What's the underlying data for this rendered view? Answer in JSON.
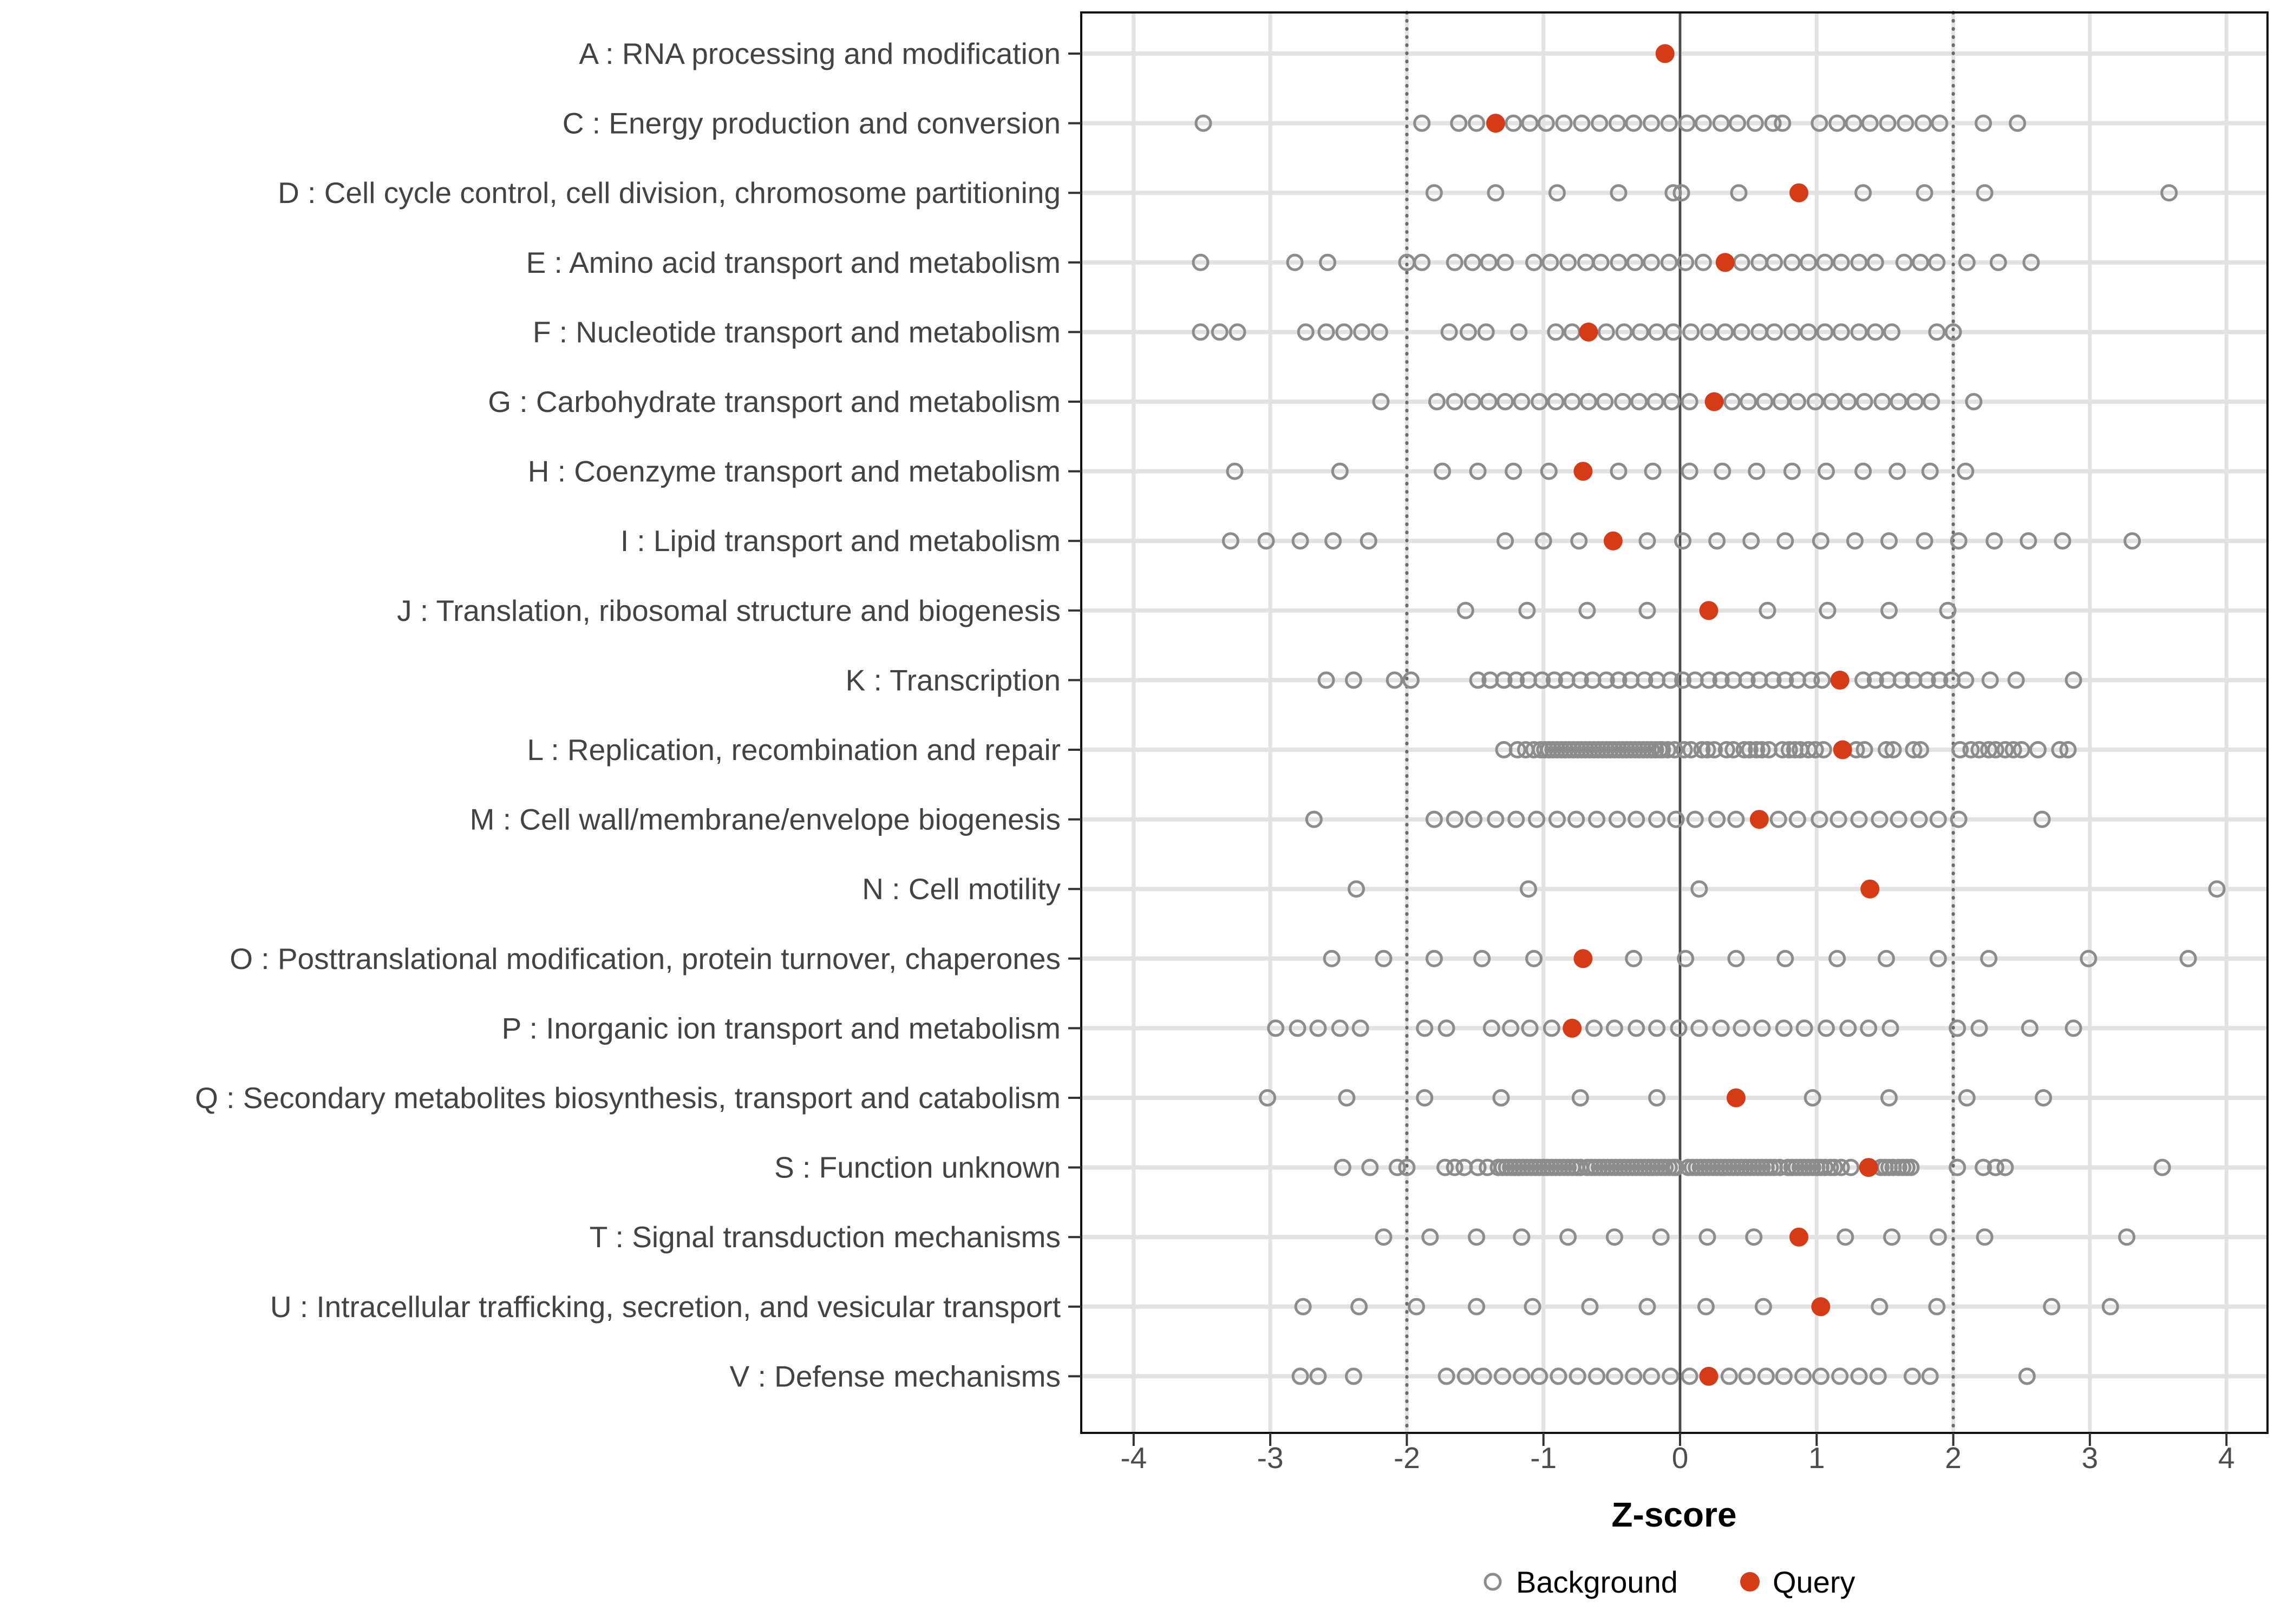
{
  "chart_data": {
    "type": "scatter",
    "title": "",
    "xlabel": "Z-score",
    "xlim": [
      -4.38,
      4.3
    ],
    "x_ticks": [
      -4,
      -3,
      -2,
      -1,
      0,
      1,
      2,
      3,
      4
    ],
    "grid": "on",
    "reference_lines": {
      "solid_at": 0,
      "dashed_at": [
        -2,
        2
      ]
    },
    "legend_position": "bottom",
    "series_names": [
      "Background",
      "Query"
    ],
    "categories": [
      {
        "label": "A : RNA processing and modification",
        "query": -0.11,
        "background": []
      },
      {
        "label": "C : Energy production and conversion",
        "query": -1.35,
        "background": [
          -3.49,
          -1.89,
          -1.62,
          -1.49,
          -1.22,
          -1.1,
          -0.98,
          -0.85,
          -0.72,
          -0.59,
          -0.46,
          -0.34,
          -0.21,
          -0.08,
          0.05,
          0.17,
          0.3,
          0.42,
          0.55,
          0.68,
          0.75,
          1.02,
          1.15,
          1.27,
          1.39,
          1.52,
          1.65,
          1.78,
          1.9,
          2.22,
          2.47
        ]
      },
      {
        "label": "D : Cell cycle control, cell division, chromosome partitioning",
        "query": 0.87,
        "background": [
          -1.8,
          -1.35,
          -0.9,
          -0.45,
          -0.05,
          0.01,
          0.43,
          1.34,
          1.79,
          2.23,
          3.58
        ]
      },
      {
        "label": "E : Amino acid transport and metabolism",
        "query": 0.33,
        "background": [
          -3.51,
          -2.82,
          -2.58,
          -2.0,
          -1.89,
          -1.65,
          -1.52,
          -1.4,
          -1.28,
          -1.07,
          -0.95,
          -0.82,
          -0.69,
          -0.58,
          -0.45,
          -0.33,
          -0.21,
          -0.08,
          0.04,
          0.17,
          0.45,
          0.58,
          0.69,
          0.82,
          0.94,
          1.06,
          1.18,
          1.31,
          1.43,
          1.64,
          1.76,
          1.88,
          2.1,
          2.33,
          2.57
        ]
      },
      {
        "label": "F : Nucleotide transport and metabolism",
        "query": -0.67,
        "background": [
          -3.51,
          -3.37,
          -3.24,
          -2.74,
          -2.59,
          -2.46,
          -2.33,
          -2.2,
          -1.69,
          -1.55,
          -1.42,
          -1.18,
          -0.91,
          -0.79,
          -0.54,
          -0.41,
          -0.29,
          -0.17,
          -0.05,
          0.08,
          0.21,
          0.33,
          0.45,
          0.58,
          0.69,
          0.82,
          0.94,
          1.06,
          1.18,
          1.31,
          1.43,
          1.55,
          1.88,
          2.0
        ]
      },
      {
        "label": "G : Carbohydrate transport and metabolism",
        "query": 0.25,
        "background": [
          -2.19,
          -1.78,
          -1.65,
          -1.52,
          -1.4,
          -1.28,
          -1.16,
          -1.03,
          -0.91,
          -0.79,
          -0.67,
          -0.55,
          -0.42,
          -0.3,
          -0.18,
          -0.06,
          0.07,
          0.38,
          0.5,
          0.62,
          0.74,
          0.86,
          0.99,
          1.11,
          1.23,
          1.35,
          1.48,
          1.6,
          1.72,
          1.84,
          2.15
        ]
      },
      {
        "label": "H : Coenzyme transport and metabolism",
        "query": -0.71,
        "background": [
          -3.26,
          -2.49,
          -1.74,
          -1.48,
          -1.22,
          -0.96,
          -0.45,
          -0.2,
          0.07,
          0.31,
          0.56,
          0.82,
          1.07,
          1.34,
          1.59,
          1.83,
          2.09
        ]
      },
      {
        "label": "I : Lipid transport and metabolism",
        "query": -0.49,
        "background": [
          -3.29,
          -3.03,
          -2.78,
          -2.54,
          -2.28,
          -1.28,
          -1.0,
          -0.74,
          -0.24,
          0.02,
          0.27,
          0.52,
          0.77,
          1.03,
          1.28,
          1.53,
          1.79,
          2.04,
          2.3,
          2.55,
          2.8,
          3.31
        ]
      },
      {
        "label": "J : Translation, ribosomal structure and biogenesis",
        "query": 0.21,
        "background": [
          -1.57,
          -1.12,
          -0.68,
          -0.24,
          0.64,
          1.08,
          1.53,
          1.96
        ]
      },
      {
        "label": "K : Transcription",
        "query": 1.17,
        "background": [
          -2.59,
          -2.39,
          -2.09,
          -1.97,
          -1.48,
          -1.39,
          -1.29,
          -1.2,
          -1.11,
          -1.01,
          -0.92,
          -0.83,
          -0.73,
          -0.64,
          -0.54,
          -0.45,
          -0.36,
          -0.26,
          -0.17,
          -0.07,
          0.02,
          0.11,
          0.21,
          0.3,
          0.39,
          0.49,
          0.58,
          0.68,
          0.77,
          0.86,
          0.96,
          1.04,
          1.34,
          1.43,
          1.52,
          1.62,
          1.71,
          1.81,
          1.9,
          1.99,
          2.09,
          2.27,
          2.46,
          2.88
        ]
      },
      {
        "label": "L : Replication, recombination and repair",
        "query": 1.19,
        "background": [
          -1.29,
          -1.19,
          -1.13,
          -1.07,
          -1.02,
          -0.99,
          -0.96,
          -0.93,
          -0.9,
          -0.87,
          -0.84,
          -0.81,
          -0.78,
          -0.75,
          -0.72,
          -0.69,
          -0.66,
          -0.63,
          -0.6,
          -0.57,
          -0.54,
          -0.51,
          -0.48,
          -0.45,
          -0.42,
          -0.39,
          -0.36,
          -0.33,
          -0.3,
          -0.27,
          -0.24,
          -0.21,
          -0.18,
          -0.15,
          -0.13,
          -0.09,
          -0.04,
          0.03,
          0.08,
          0.16,
          0.2,
          0.25,
          0.34,
          0.39,
          0.47,
          0.51,
          0.56,
          0.6,
          0.65,
          0.75,
          0.8,
          0.84,
          0.88,
          0.94,
          0.99,
          1.05,
          1.29,
          1.35,
          1.51,
          1.56,
          1.71,
          1.76,
          2.05,
          2.13,
          2.19,
          2.26,
          2.31,
          2.38,
          2.44,
          2.5,
          2.62,
          2.78,
          2.84
        ]
      },
      {
        "label": "M : Cell wall/membrane/envelope biogenesis",
        "query": 0.58,
        "background": [
          -2.68,
          -1.8,
          -1.65,
          -1.51,
          -1.35,
          -1.2,
          -1.05,
          -0.9,
          -0.76,
          -0.61,
          -0.46,
          -0.32,
          -0.17,
          -0.03,
          0.11,
          0.27,
          0.41,
          0.72,
          0.86,
          1.02,
          1.16,
          1.31,
          1.46,
          1.6,
          1.75,
          1.89,
          2.04,
          2.65
        ]
      },
      {
        "label": "N : Cell motility",
        "query": 1.39,
        "background": [
          -2.37,
          -1.11,
          0.14,
          3.93
        ]
      },
      {
        "label": "O : Posttranslational modification, protein turnover, chaperones",
        "query": -0.71,
        "background": [
          -2.55,
          -2.17,
          -1.8,
          -1.45,
          -1.07,
          -0.34,
          0.04,
          0.41,
          0.77,
          1.15,
          1.51,
          1.89,
          2.26,
          2.99,
          3.72
        ]
      },
      {
        "label": "P : Inorganic ion transport and metabolism",
        "query": -0.79,
        "background": [
          -2.96,
          -2.8,
          -2.65,
          -2.49,
          -2.34,
          -1.87,
          -1.71,
          -1.38,
          -1.24,
          -1.1,
          -0.94,
          -0.63,
          -0.48,
          -0.32,
          -0.17,
          -0.01,
          0.14,
          0.3,
          0.45,
          0.6,
          0.76,
          0.91,
          1.07,
          1.23,
          1.38,
          1.54,
          2.03,
          2.19,
          2.56,
          2.88
        ]
      },
      {
        "label": "Q : Secondary metabolites biosynthesis, transport and catabolism",
        "query": 0.41,
        "background": [
          -3.02,
          -2.44,
          -1.87,
          -1.31,
          -0.73,
          -0.17,
          0.97,
          1.53,
          2.1,
          2.66
        ]
      },
      {
        "label": "S : Function unknown",
        "query": 1.38,
        "background": [
          -2.47,
          -2.27,
          -2.07,
          -2.0,
          -1.72,
          -1.65,
          -1.58,
          -1.48,
          -1.41,
          -1.33,
          -1.3,
          -1.27,
          -1.24,
          -1.21,
          -1.18,
          -1.15,
          -1.12,
          -1.09,
          -1.06,
          -1.03,
          -1.0,
          -0.97,
          -0.94,
          -0.91,
          -0.88,
          -0.85,
          -0.82,
          -0.79,
          -0.76,
          -0.73,
          -0.68,
          -0.65,
          -0.62,
          -0.59,
          -0.56,
          -0.53,
          -0.5,
          -0.47,
          -0.44,
          -0.41,
          -0.38,
          -0.35,
          -0.32,
          -0.29,
          -0.26,
          -0.23,
          -0.2,
          -0.17,
          -0.14,
          -0.11,
          -0.08,
          -0.05,
          -0.03,
          0.06,
          0.09,
          0.12,
          0.15,
          0.18,
          0.21,
          0.24,
          0.27,
          0.3,
          0.33,
          0.36,
          0.39,
          0.42,
          0.45,
          0.48,
          0.51,
          0.54,
          0.57,
          0.6,
          0.63,
          0.66,
          0.69,
          0.73,
          0.79,
          0.82,
          0.85,
          0.88,
          0.91,
          0.94,
          0.97,
          1.0,
          1.03,
          1.06,
          1.1,
          1.13,
          1.18,
          1.25,
          1.47,
          1.5,
          1.53,
          1.56,
          1.6,
          1.63,
          1.66,
          1.69,
          2.03,
          2.22,
          2.31,
          2.38,
          3.53
        ]
      },
      {
        "label": "T : Signal transduction mechanisms",
        "query": 0.87,
        "background": [
          -2.17,
          -1.83,
          -1.49,
          -1.16,
          -0.82,
          -0.48,
          -0.14,
          0.2,
          0.54,
          1.21,
          1.55,
          1.89,
          2.23,
          3.27
        ]
      },
      {
        "label": "U : Intracellular trafficking, secretion, and vesicular transport",
        "query": 1.03,
        "background": [
          -2.76,
          -2.35,
          -1.93,
          -1.49,
          -1.08,
          -0.66,
          -0.24,
          0.19,
          0.61,
          1.46,
          1.88,
          2.72,
          3.15
        ]
      },
      {
        "label": "V : Defense mechanisms",
        "query": 0.21,
        "background": [
          -2.78,
          -2.65,
          -2.39,
          -1.71,
          -1.57,
          -1.44,
          -1.3,
          -1.16,
          -1.03,
          -0.89,
          -0.75,
          -0.61,
          -0.48,
          -0.34,
          -0.21,
          -0.07,
          0.07,
          0.36,
          0.49,
          0.63,
          0.76,
          0.9,
          1.03,
          1.17,
          1.31,
          1.45,
          1.7,
          1.83,
          2.54
        ]
      }
    ]
  },
  "legend": {
    "background_label": "Background",
    "query_label": "Query"
  },
  "colors": {
    "query_fill": "#d43b16",
    "background_stroke": "#8c8c8c",
    "grid_light": "#e2e2e2",
    "ref_solid": "#4a4a4a",
    "ref_dashed": "#6b6b6b",
    "panel_border": "#111111",
    "tick_mark": "#333333",
    "axis_text": "#4d4d4d"
  }
}
